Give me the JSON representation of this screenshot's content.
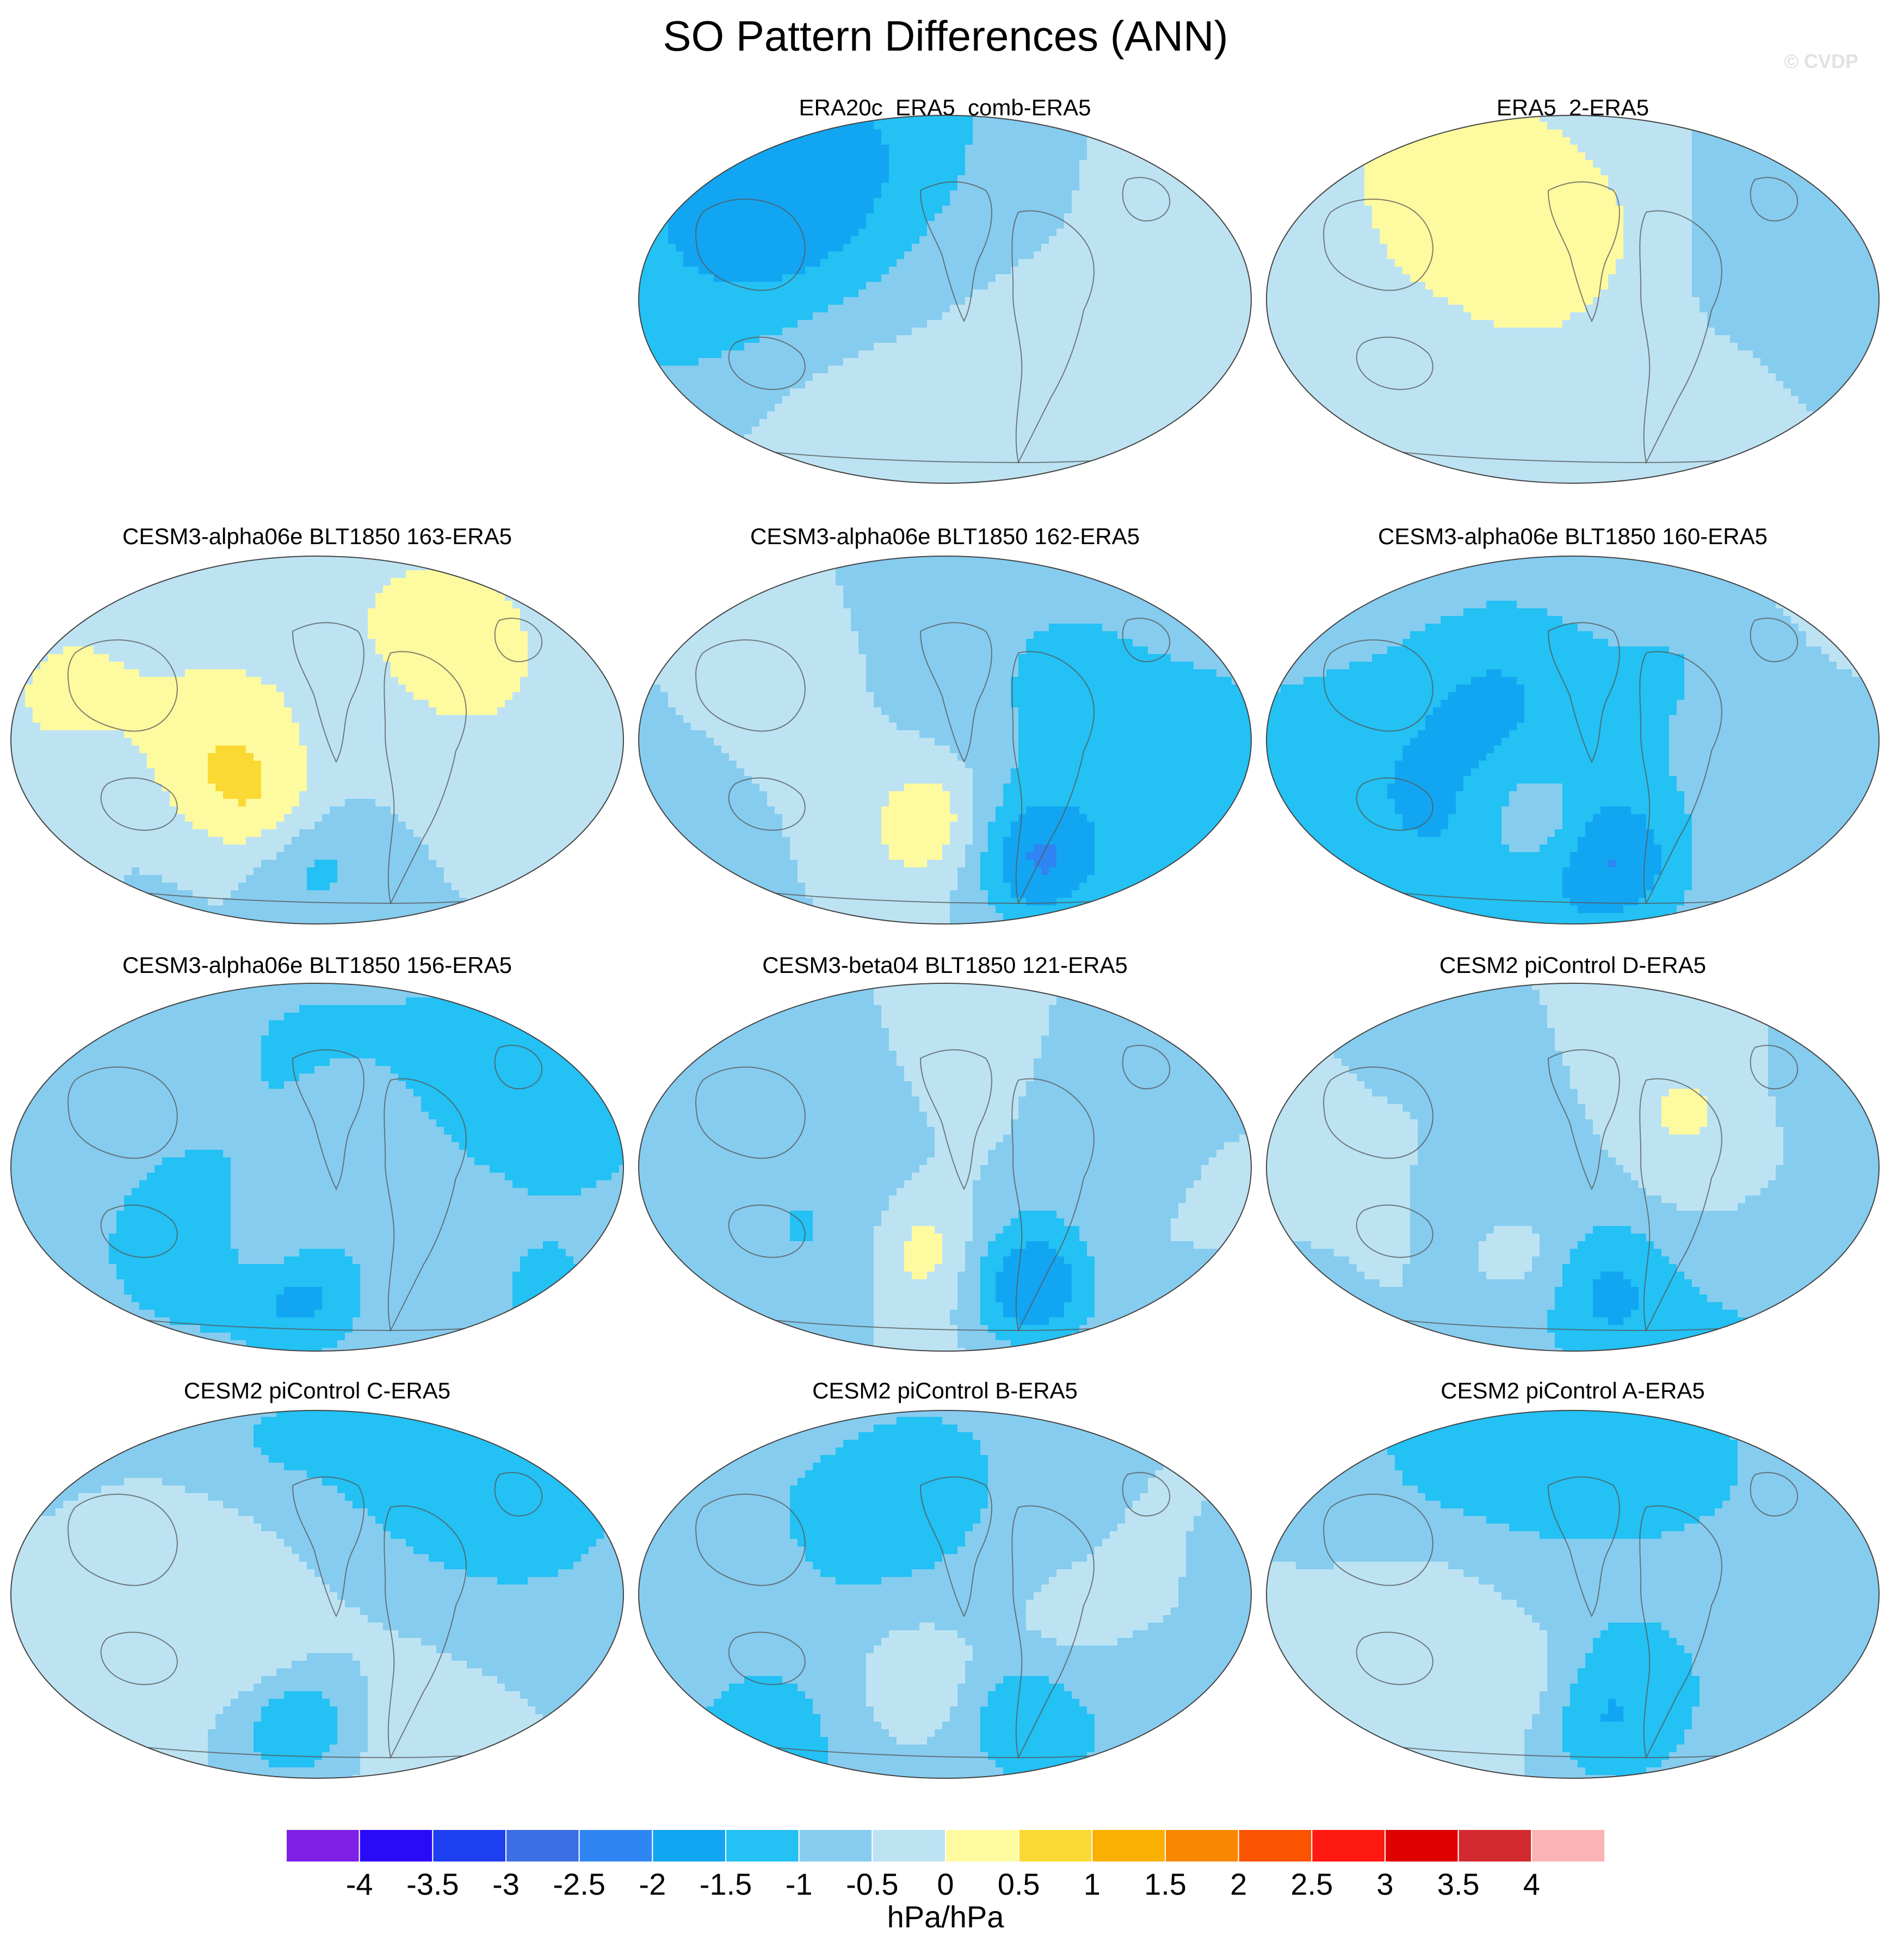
{
  "chart_data": {
    "type": "heatmap",
    "title": "SO Pattern Differences (ANN)",
    "watermark": "© CVDP",
    "units": "hPa/hPa",
    "colorbar": {
      "ticks": [
        "-4",
        "-3.5",
        "-3",
        "-2.5",
        "-2",
        "-1.5",
        "-1",
        "-0.5",
        "0",
        "0.5",
        "1",
        "1.5",
        "2",
        "2.5",
        "3",
        "3.5",
        "4"
      ],
      "colors": [
        "#7e1fe6",
        "#2a0af7",
        "#1e3ff0",
        "#3c6ee6",
        "#2f86f2",
        "#12a6f2",
        "#23c1f4",
        "#86ccef",
        "#bde3f3",
        "#fefaa0",
        "#fad933",
        "#f9b000",
        "#fa8700",
        "#fa5400",
        "#fe1a10",
        "#df0000",
        "#d22a2f",
        "#fbb3b4"
      ]
    },
    "panels": [
      {
        "title": "ERA20c_ERA5_comb-ERA5",
        "row": 0,
        "col": 1,
        "seed": 11,
        "negative_anomaly": 0,
        "positive_anomaly": 0
      },
      {
        "title": "ERA5_2-ERA5",
        "row": 0,
        "col": 2,
        "seed": 23,
        "negative_anomaly": 0,
        "positive_anomaly": 0
      },
      {
        "title": "CESM3-alpha06e BLT1850 163-ERA5",
        "row": 1,
        "col": 0,
        "seed": 37,
        "negative_anomaly": -0.8,
        "positive_anomaly": 0.6
      },
      {
        "title": "CESM3-alpha06e BLT1850 162-ERA5",
        "row": 1,
        "col": 1,
        "seed": 41,
        "negative_anomaly": -1.4,
        "positive_anomaly": 0.9
      },
      {
        "title": "CESM3-alpha06e BLT1850 160-ERA5",
        "row": 1,
        "col": 2,
        "seed": 53,
        "negative_anomaly": -0.9,
        "positive_anomaly": 0.9
      },
      {
        "title": "CESM3-alpha06e BLT1850 156-ERA5",
        "row": 2,
        "col": 0,
        "seed": 67,
        "negative_anomaly": -1.3,
        "positive_anomaly": 0.9
      },
      {
        "title": "CESM3-beta04 BLT1850 121-ERA5",
        "row": 2,
        "col": 1,
        "seed": 71,
        "negative_anomaly": -1.6,
        "positive_anomaly": 0.8
      },
      {
        "title": "CESM2 piControl D-ERA5",
        "row": 2,
        "col": 2,
        "seed": 83,
        "negative_anomaly": -0.7,
        "positive_anomaly": 0.6
      },
      {
        "title": "CESM2 piControl C-ERA5",
        "row": 3,
        "col": 0,
        "seed": 97,
        "negative_anomaly": -1.4,
        "positive_anomaly": 0.6
      },
      {
        "title": "CESM2 piControl B-ERA5",
        "row": 3,
        "col": 1,
        "seed": 101,
        "negative_anomaly": -0.9,
        "positive_anomaly": 0.7
      },
      {
        "title": "CESM2 piControl A-ERA5",
        "row": 3,
        "col": 2,
        "seed": 113,
        "negative_anomaly": -0.7,
        "positive_anomaly": 0.5
      }
    ]
  }
}
